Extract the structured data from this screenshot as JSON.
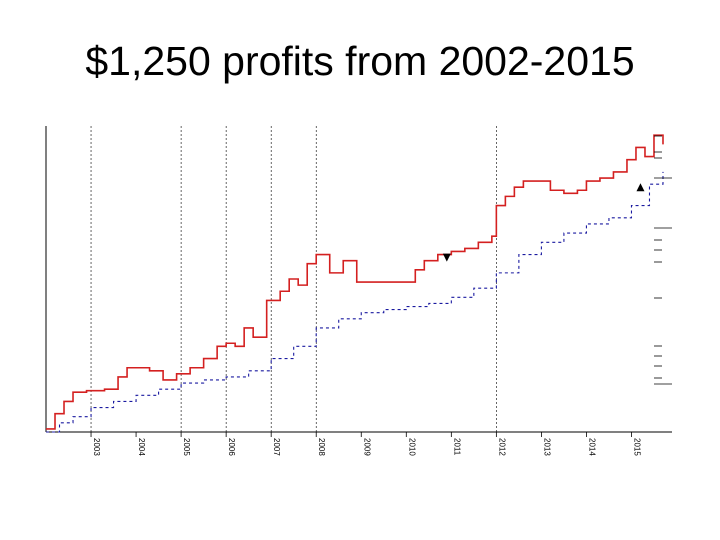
{
  "slide": {
    "title": "$1,250 profits from 2002-2015"
  },
  "chart_data": {
    "type": "line",
    "title": "$1,250 profits from 2002-2015",
    "xlabel": "",
    "ylabel": "",
    "xlim": [
      2002.0,
      2015.9
    ],
    "ylim": [
      0,
      100
    ],
    "grid": "vertical dashed lines at year boundaries",
    "x_ticks": [
      "2003",
      "2004",
      "2005",
      "2006",
      "2007",
      "2008",
      "2009",
      "2010",
      "2011",
      "2012",
      "2013",
      "2014",
      "2015"
    ],
    "x_tick_values": [
      2003,
      2004,
      2005,
      2006,
      2007,
      2008,
      2009,
      2010,
      2011,
      2012,
      2013,
      2014,
      2015
    ],
    "vertical_grid_years": [
      2003,
      2005,
      2006,
      2007,
      2008,
      2012
    ],
    "colors": {
      "equity": "#d42020",
      "baseline": "#1a1aa0",
      "axis": "#000000"
    },
    "series": [
      {
        "style": "step",
        "color": "#d42020",
        "x": [
          2002.0,
          2002.2,
          2002.4,
          2002.6,
          2002.9,
          2003.3,
          2003.6,
          2003.8,
          2004.0,
          2004.3,
          2004.6,
          2004.9,
          2005.2,
          2005.5,
          2005.8,
          2006.0,
          2006.2,
          2006.4,
          2006.6,
          2006.9,
          2007.2,
          2007.4,
          2007.6,
          2007.8,
          2008.0,
          2008.3,
          2008.6,
          2008.9,
          2009.2,
          2009.5,
          2009.8,
          2010.0,
          2010.2,
          2010.4,
          2010.7,
          2011.0,
          2011.3,
          2011.6,
          2011.9,
          2012.0,
          2012.2,
          2012.4,
          2012.6,
          2012.9,
          2013.2,
          2013.5,
          2013.8,
          2014.0,
          2014.3,
          2014.6,
          2014.9,
          2015.1,
          2015.3,
          2015.5,
          2015.7
        ],
        "y": [
          1,
          6,
          10,
          13,
          13.5,
          14,
          18,
          21,
          21,
          20,
          17,
          19,
          21,
          24,
          28,
          29,
          28,
          34,
          31,
          43,
          46,
          50,
          48,
          55,
          58,
          52,
          56,
          49,
          49,
          49,
          49,
          49,
          53,
          56,
          58,
          59,
          60,
          62,
          64,
          74,
          77,
          80,
          82,
          82,
          79,
          78,
          79,
          82,
          83,
          85,
          89,
          93,
          90,
          97,
          94
        ]
      },
      {
        "style": "dotted-step",
        "color": "#1a1aa0",
        "x": [
          2002.0,
          2002.3,
          2002.6,
          2003.0,
          2003.5,
          2004.0,
          2004.5,
          2005.0,
          2005.5,
          2006.0,
          2006.5,
          2007.0,
          2007.5,
          2008.0,
          2008.5,
          2009.0,
          2009.5,
          2010.0,
          2010.5,
          2011.0,
          2011.5,
          2012.0,
          2012.5,
          2013.0,
          2013.5,
          2014.0,
          2014.5,
          2015.0,
          2015.4,
          2015.7
        ],
        "y": [
          0,
          3,
          5,
          8,
          10,
          12,
          14,
          16,
          17,
          18,
          20,
          24,
          28,
          34,
          37,
          39,
          40,
          41,
          42,
          44,
          47,
          52,
          58,
          62,
          65,
          68,
          70,
          74,
          81,
          85
        ]
      }
    ],
    "markers": [
      {
        "shape": "triangle-down",
        "x": 2010.9,
        "y": 57,
        "color": "#000000"
      },
      {
        "shape": "triangle-up",
        "x": 2015.2,
        "y": 80,
        "color": "#000000"
      }
    ]
  }
}
